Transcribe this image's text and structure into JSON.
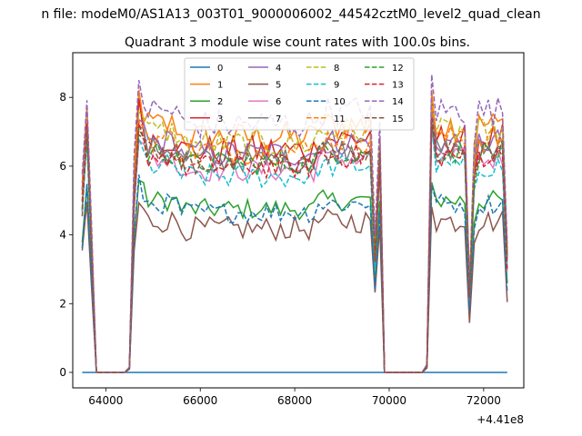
{
  "chart_data": {
    "type": "line",
    "suptitle": "n file: modeM0/AS1A13_003T01_9000006002_44542cztM0_level2_quad_clean",
    "title": "Quadrant 3 module wise count rates with 100.0s bins.",
    "xlabel": "",
    "ylabel": "",
    "x_offset_label": "+4.41e8",
    "xlim": [
      63300,
      72850
    ],
    "ylim": [
      -0.45,
      9.3
    ],
    "xticks": [
      64000,
      66000,
      68000,
      70000,
      72000
    ],
    "xtick_labels": [
      "64000",
      "66000",
      "68000",
      "70000",
      "72000"
    ],
    "yticks": [
      0,
      2,
      4,
      6,
      8
    ],
    "ytick_labels": [
      "0",
      "2",
      "4",
      "6",
      "8"
    ],
    "grid": false,
    "legend_placement": "top-center",
    "legend_columns": 4,
    "x_start": 63500,
    "x_step": 100,
    "series": [
      {
        "name": "0",
        "color": "#1f77b4",
        "dash": "solid",
        "base": 0.0,
        "amp": 0.0
      },
      {
        "name": "1",
        "color": "#ff7f0e",
        "dash": "solid",
        "base": 7.2,
        "amp": 0.45
      },
      {
        "name": "2",
        "color": "#2ca02c",
        "dash": "solid",
        "base": 5.0,
        "amp": 0.3
      },
      {
        "name": "3",
        "color": "#d62728",
        "dash": "solid",
        "base": 6.8,
        "amp": 0.45
      },
      {
        "name": "4",
        "color": "#9467bd",
        "dash": "solid",
        "base": 6.7,
        "amp": 0.4
      },
      {
        "name": "5",
        "color": "#8c564b",
        "dash": "solid",
        "base": 4.4,
        "amp": 0.35
      },
      {
        "name": "6",
        "color": "#e377c2",
        "dash": "solid",
        "base": 6.2,
        "amp": 0.35
      },
      {
        "name": "7",
        "color": "#7f7f7f",
        "dash": "solid",
        "base": 6.5,
        "amp": 0.35
      },
      {
        "name": "8",
        "color": "#bcbd22",
        "dash": "dashed",
        "base": 7.0,
        "amp": 0.4
      },
      {
        "name": "9",
        "color": "#17becf",
        "dash": "dashed",
        "base": 6.0,
        "amp": 0.35
      },
      {
        "name": "10",
        "color": "#1f77b4",
        "dash": "dashed",
        "base": 4.9,
        "amp": 0.3
      },
      {
        "name": "11",
        "color": "#ff7f0e",
        "dash": "dashed",
        "base": 6.8,
        "amp": 0.4
      },
      {
        "name": "12",
        "color": "#2ca02c",
        "dash": "dashed",
        "base": 6.4,
        "amp": 0.35
      },
      {
        "name": "13",
        "color": "#d62728",
        "dash": "dashed",
        "base": 6.3,
        "amp": 0.35
      },
      {
        "name": "14",
        "color": "#9467bd",
        "dash": "dashed",
        "base": 7.6,
        "amp": 0.45
      },
      {
        "name": "15",
        "color": "#8c564b",
        "dash": "dashed",
        "base": 6.4,
        "amp": 0.35
      }
    ]
  }
}
